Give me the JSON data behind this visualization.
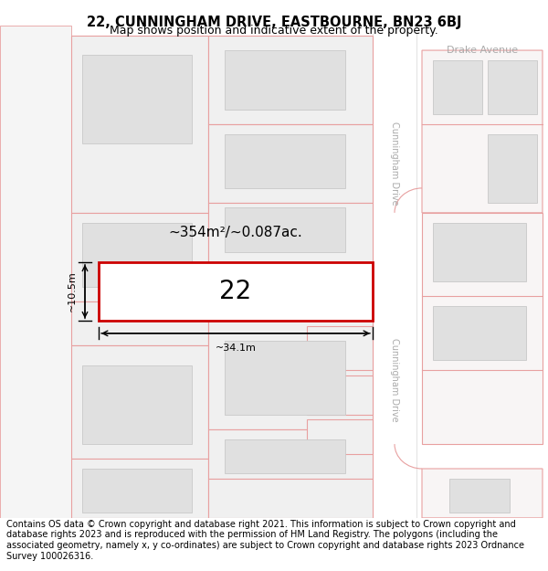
{
  "title": "22, CUNNINGHAM DRIVE, EASTBOURNE, BN23 6BJ",
  "subtitle": "Map shows position and indicative extent of the property.",
  "footer": "Contains OS data © Crown copyright and database right 2021. This information is subject to Crown copyright and database rights 2023 and is reproduced with the permission of HM Land Registry. The polygons (including the associated geometry, namely x, y co-ordinates) are subject to Crown copyright and database rights 2023 Ordnance Survey 100026316.",
  "bg_color": "#ffffff",
  "map_bg": "#ffffff",
  "plot_fill": "#f0f0f0",
  "plot_outline": "#e8a0a0",
  "highlight_fill": "#ffffff",
  "highlight_outline": "#cc0000",
  "building_fill": "#e0e0e0",
  "building_outline": "#c8c8c8",
  "road_fill": "#ffffff",
  "road_label_color": "#aaaaaa",
  "text_color": "#000000",
  "area_text": "~354m²/~0.087ac.",
  "width_text": "~34.1m",
  "height_text": "~10.5m",
  "house_number": "22",
  "title_fontsize": 10.5,
  "subtitle_fontsize": 9,
  "footer_fontsize": 7,
  "area_fontsize": 11,
  "dim_fontsize": 8,
  "number_fontsize": 20,
  "road_label_fontsize": 7
}
